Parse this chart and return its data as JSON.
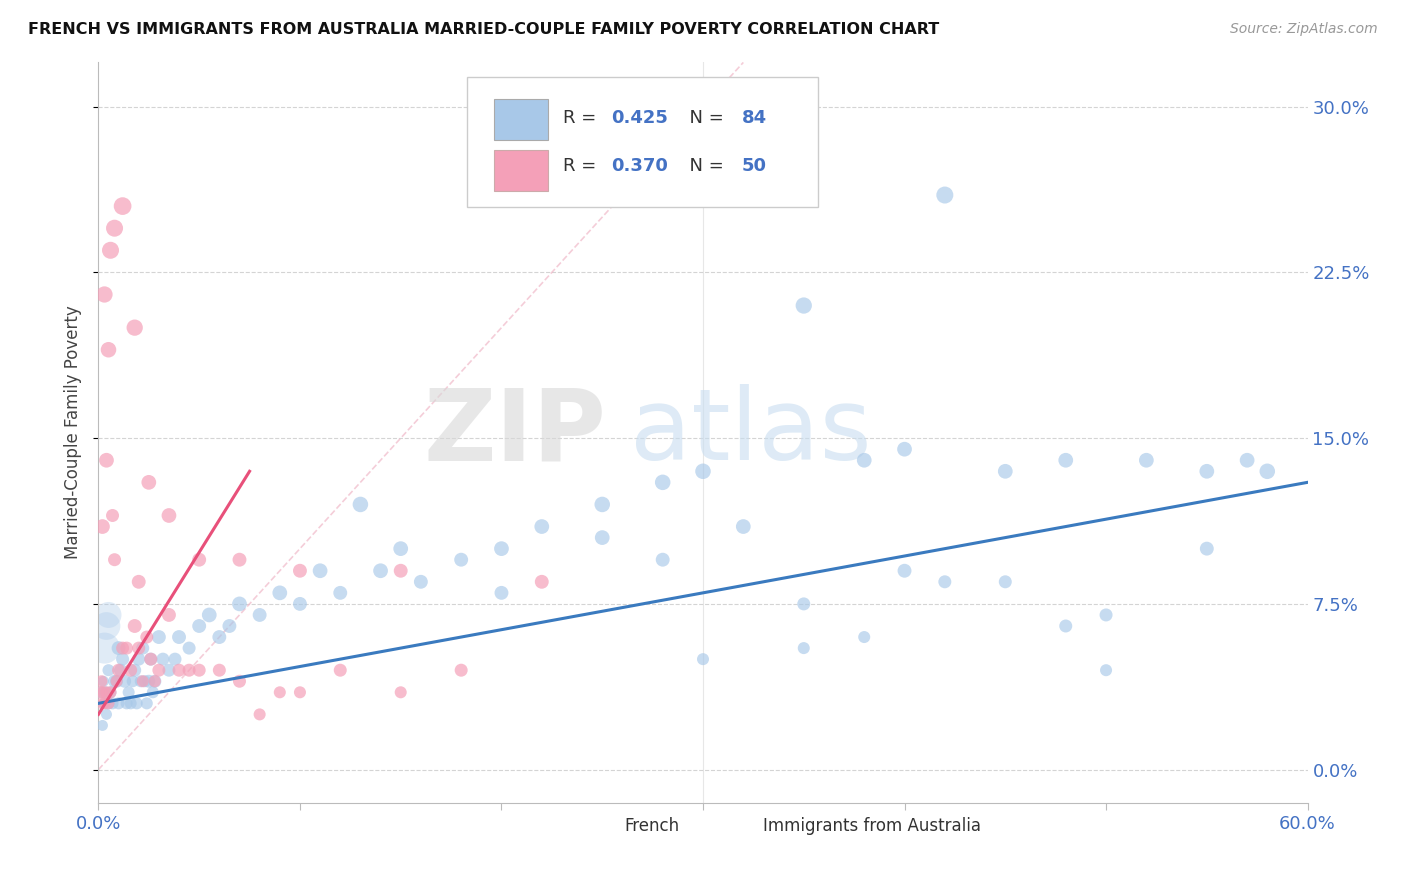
{
  "title": "FRENCH VS IMMIGRANTS FROM AUSTRALIA MARRIED-COUPLE FAMILY POVERTY CORRELATION CHART",
  "source": "Source: ZipAtlas.com",
  "ylabel": "Married-Couple Family Poverty",
  "yticks": [
    "0.0%",
    "7.5%",
    "15.0%",
    "22.5%",
    "30.0%"
  ],
  "ytick_vals": [
    0.0,
    7.5,
    15.0,
    22.5,
    30.0
  ],
  "legend_label1": "French",
  "legend_label2": "Immigrants from Australia",
  "blue_scatter_color": "#a8c8e8",
  "pink_scatter_color": "#f4a0b8",
  "blue_line_color": "#3a7abf",
  "pink_line_color": "#e8507a",
  "blue_legend_color": "#a8c8e8",
  "pink_legend_color": "#f4a0b8",
  "legend_R1": "0.425",
  "legend_N1": "84",
  "legend_R2": "0.370",
  "legend_N2": "50",
  "xmin": 0.0,
  "xmax": 60.0,
  "ymin": -1.5,
  "ymax": 32.0,
  "background_color": "#ffffff",
  "grid_color": "#d0d0d0",
  "watermark_zip": "ZIP",
  "watermark_atlas": "atlas",
  "blue_line_x0": 0.0,
  "blue_line_y0": 3.0,
  "blue_line_x1": 60.0,
  "blue_line_y1": 13.0,
  "pink_line_x0": 0.0,
  "pink_line_y0": 2.5,
  "pink_line_x1": 7.5,
  "pink_line_y1": 13.5,
  "diag_color": "#f0b8c8",
  "french_x": [
    0.15,
    0.2,
    0.25,
    0.3,
    0.35,
    0.4,
    0.5,
    0.5,
    0.6,
    0.7,
    0.8,
    0.9,
    1.0,
    1.0,
    1.1,
    1.2,
    1.3,
    1.4,
    1.5,
    1.6,
    1.7,
    1.8,
    1.9,
    2.0,
    2.1,
    2.2,
    2.3,
    2.4,
    2.5,
    2.6,
    2.7,
    2.8,
    3.0,
    3.2,
    3.5,
    3.8,
    4.0,
    4.5,
    5.0,
    5.5,
    6.0,
    6.5,
    7.0,
    8.0,
    9.0,
    10.0,
    11.0,
    12.0,
    13.0,
    14.0,
    15.0,
    16.0,
    18.0,
    20.0,
    22.0,
    25.0,
    28.0,
    30.0,
    32.0,
    35.0,
    38.0,
    40.0,
    42.0,
    45.0,
    48.0,
    50.0,
    52.0,
    55.0,
    57.0,
    20.0,
    25.0,
    28.0,
    32.0,
    35.0,
    40.0,
    45.0,
    50.0,
    55.0,
    58.0,
    48.0,
    42.0,
    38.0,
    35.0,
    30.0
  ],
  "french_y": [
    3.5,
    2.0,
    4.0,
    3.0,
    3.5,
    2.5,
    3.0,
    4.5,
    3.5,
    3.0,
    4.0,
    4.0,
    5.5,
    3.0,
    4.5,
    5.0,
    4.0,
    3.0,
    3.5,
    3.0,
    4.0,
    4.5,
    3.0,
    5.0,
    4.0,
    5.5,
    4.0,
    3.0,
    4.0,
    5.0,
    3.5,
    4.0,
    6.0,
    5.0,
    4.5,
    5.0,
    6.0,
    5.5,
    6.5,
    7.0,
    6.0,
    6.5,
    7.5,
    7.0,
    8.0,
    7.5,
    9.0,
    8.0,
    12.0,
    9.0,
    10.0,
    8.5,
    9.5,
    10.0,
    11.0,
    12.0,
    13.0,
    13.5,
    29.5,
    21.0,
    14.0,
    14.5,
    26.0,
    13.5,
    14.0,
    4.5,
    14.0,
    13.5,
    14.0,
    8.0,
    10.5,
    9.5,
    11.0,
    7.5,
    9.0,
    8.5,
    7.0,
    10.0,
    13.5,
    6.5,
    8.5,
    6.0,
    5.5,
    5.0
  ],
  "french_sizes": [
    30,
    25,
    25,
    25,
    30,
    25,
    30,
    30,
    30,
    30,
    35,
    35,
    40,
    30,
    35,
    35,
    35,
    30,
    30,
    30,
    30,
    35,
    30,
    35,
    30,
    35,
    30,
    30,
    35,
    35,
    30,
    35,
    40,
    35,
    35,
    35,
    40,
    35,
    40,
    45,
    40,
    40,
    45,
    40,
    45,
    40,
    45,
    40,
    50,
    45,
    45,
    40,
    40,
    45,
    45,
    50,
    50,
    50,
    60,
    55,
    45,
    45,
    60,
    45,
    45,
    30,
    45,
    45,
    45,
    40,
    45,
    40,
    45,
    35,
    40,
    35,
    35,
    40,
    50,
    35,
    35,
    30,
    30,
    30
  ],
  "imm_x": [
    0.1,
    0.15,
    0.2,
    0.25,
    0.3,
    0.4,
    0.5,
    0.6,
    0.7,
    0.8,
    0.9,
    1.0,
    1.2,
    1.4,
    1.6,
    1.8,
    2.0,
    2.2,
    2.4,
    2.6,
    2.8,
    3.0,
    3.5,
    4.0,
    4.5,
    5.0,
    6.0,
    7.0,
    8.0,
    9.0,
    10.0,
    12.0,
    15.0,
    18.0,
    22.0,
    0.3,
    0.5,
    0.8,
    1.2,
    1.8,
    2.5,
    3.5,
    5.0,
    7.0,
    10.0,
    15.0,
    0.2,
    0.4,
    0.6,
    2.0
  ],
  "imm_y": [
    3.5,
    4.0,
    3.0,
    3.5,
    3.0,
    3.5,
    3.0,
    3.5,
    11.5,
    9.5,
    4.0,
    4.5,
    5.5,
    5.5,
    4.5,
    6.5,
    5.5,
    4.0,
    6.0,
    5.0,
    4.0,
    4.5,
    7.0,
    4.5,
    4.5,
    4.5,
    4.5,
    4.0,
    2.5,
    3.5,
    3.5,
    4.5,
    3.5,
    4.5,
    8.5,
    21.5,
    19.0,
    24.5,
    25.5,
    20.0,
    13.0,
    11.5,
    9.5,
    9.5,
    9.0,
    9.0,
    11.0,
    14.0,
    23.5,
    8.5
  ],
  "imm_sizes": [
    30,
    30,
    30,
    30,
    30,
    30,
    30,
    30,
    35,
    35,
    30,
    35,
    35,
    35,
    35,
    40,
    35,
    30,
    35,
    35,
    30,
    35,
    40,
    35,
    35,
    35,
    35,
    35,
    30,
    30,
    30,
    35,
    30,
    35,
    40,
    55,
    50,
    60,
    65,
    55,
    45,
    45,
    40,
    40,
    40,
    40,
    45,
    45,
    60,
    40
  ]
}
